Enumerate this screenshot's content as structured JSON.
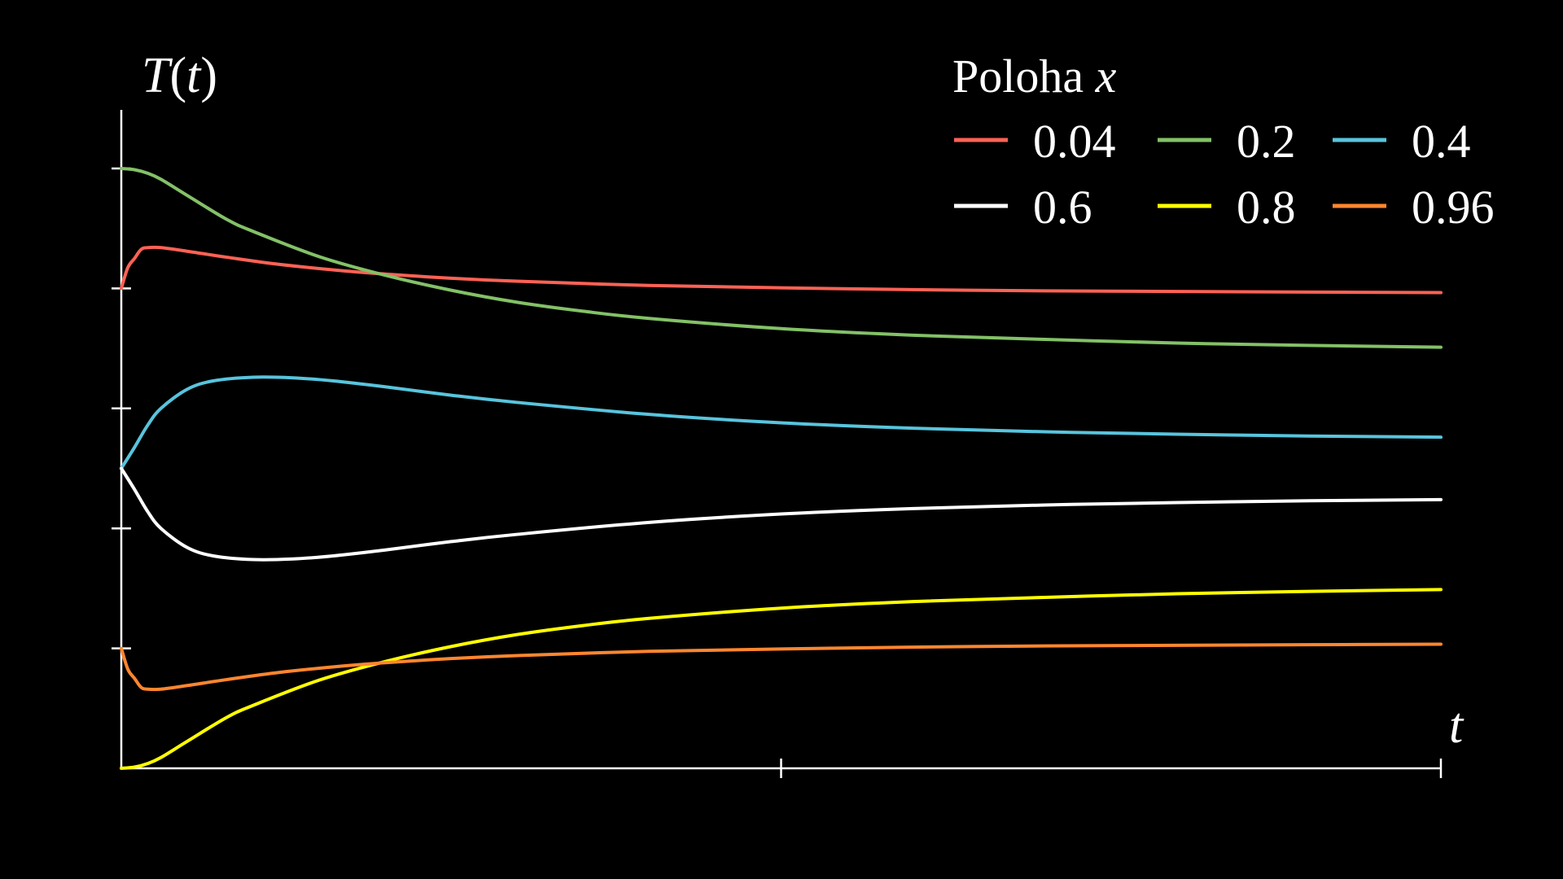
{
  "chart_data": {
    "type": "line",
    "title": "",
    "xlabel": "t",
    "ylabel": "T(t)",
    "xlim": [
      0,
      1
    ],
    "ylim": [
      0,
      1
    ],
    "x_ticks": [
      0.5,
      1.0
    ],
    "y_ticks": [
      0.2,
      0.4,
      0.6,
      0.8,
      1.0
    ],
    "grid": false,
    "legend": {
      "title_prefix": "Poloha ",
      "title_var": "x",
      "placement": "top-right",
      "columns": 3
    },
    "background": "#000000",
    "axis_color": "#ffffff",
    "series": [
      {
        "name": "0.04",
        "color": "#fc6255",
        "x": [
          0,
          0.005,
          0.01,
          0.015,
          0.02,
          0.03,
          0.05,
          0.08,
          0.12,
          0.17,
          0.2,
          0.25,
          0.3,
          0.4,
          0.5,
          0.6,
          0.7,
          0.8,
          0.9,
          1.0
        ],
        "y": [
          0.8,
          0.835,
          0.85,
          0.865,
          0.868,
          0.868,
          0.862,
          0.852,
          0.84,
          0.829,
          0.824,
          0.817,
          0.812,
          0.805,
          0.801,
          0.798,
          0.796,
          0.795,
          0.794,
          0.793
        ]
      },
      {
        "name": "0.2",
        "color": "#83c167",
        "x": [
          0,
          0.01,
          0.02,
          0.03,
          0.05,
          0.08,
          0.1,
          0.15,
          0.2,
          0.25,
          0.3,
          0.35,
          0.4,
          0.5,
          0.6,
          0.7,
          0.8,
          0.9,
          1.0
        ],
        "y": [
          1.0,
          0.998,
          0.992,
          0.982,
          0.955,
          0.915,
          0.895,
          0.853,
          0.822,
          0.797,
          0.777,
          0.762,
          0.75,
          0.733,
          0.722,
          0.715,
          0.709,
          0.705,
          0.702
        ]
      },
      {
        "name": "0.4",
        "color": "#58c4dd",
        "x": [
          0,
          0.01,
          0.02,
          0.03,
          0.05,
          0.07,
          0.1,
          0.13,
          0.16,
          0.2,
          0.25,
          0.3,
          0.4,
          0.5,
          0.6,
          0.7,
          0.8,
          0.9,
          1.0
        ],
        "y": [
          0.5,
          0.535,
          0.572,
          0.6,
          0.632,
          0.646,
          0.652,
          0.651,
          0.646,
          0.636,
          0.622,
          0.61,
          0.59,
          0.576,
          0.567,
          0.561,
          0.557,
          0.554,
          0.552
        ]
      },
      {
        "name": "0.6",
        "color": "#ffffff",
        "x": [
          0,
          0.01,
          0.02,
          0.03,
          0.05,
          0.07,
          0.1,
          0.13,
          0.16,
          0.2,
          0.25,
          0.3,
          0.4,
          0.5,
          0.6,
          0.7,
          0.8,
          0.9,
          1.0
        ],
        "y": [
          0.5,
          0.465,
          0.428,
          0.4,
          0.368,
          0.354,
          0.348,
          0.349,
          0.354,
          0.364,
          0.378,
          0.39,
          0.41,
          0.424,
          0.433,
          0.439,
          0.443,
          0.446,
          0.448
        ]
      },
      {
        "name": "0.8",
        "color": "#ffff00",
        "x": [
          0,
          0.01,
          0.02,
          0.03,
          0.05,
          0.08,
          0.1,
          0.15,
          0.2,
          0.25,
          0.3,
          0.35,
          0.4,
          0.5,
          0.6,
          0.7,
          0.8,
          0.9,
          1.0
        ],
        "y": [
          0.0,
          0.002,
          0.008,
          0.018,
          0.045,
          0.085,
          0.105,
          0.147,
          0.178,
          0.203,
          0.223,
          0.238,
          0.25,
          0.267,
          0.278,
          0.285,
          0.291,
          0.295,
          0.298
        ]
      },
      {
        "name": "0.96",
        "color": "#ff862f",
        "x": [
          0,
          0.005,
          0.01,
          0.015,
          0.02,
          0.03,
          0.05,
          0.08,
          0.12,
          0.17,
          0.2,
          0.25,
          0.3,
          0.4,
          0.5,
          0.6,
          0.7,
          0.8,
          0.9,
          1.0
        ],
        "y": [
          0.2,
          0.165,
          0.15,
          0.135,
          0.132,
          0.132,
          0.138,
          0.148,
          0.16,
          0.171,
          0.176,
          0.183,
          0.188,
          0.195,
          0.199,
          0.202,
          0.204,
          0.205,
          0.206,
          0.207
        ]
      }
    ]
  }
}
